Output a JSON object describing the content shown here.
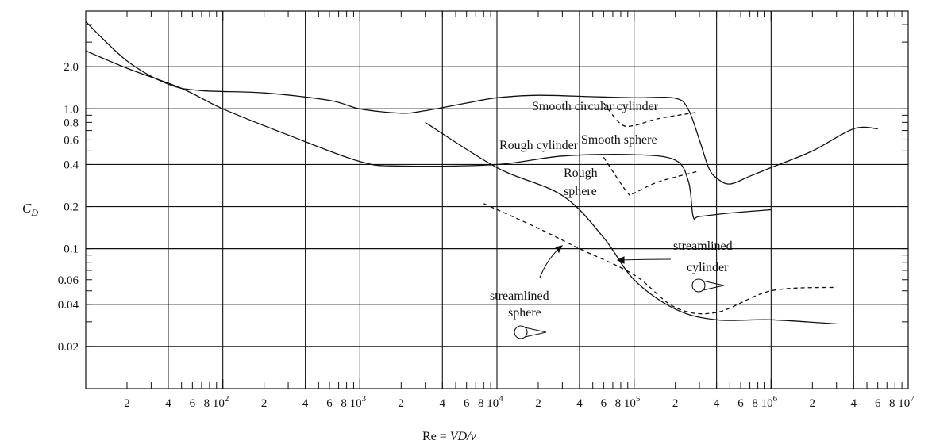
{
  "chart_data": {
    "type": "line",
    "x_scale": "log",
    "y_scale": "log",
    "xlim": [
      10,
      10000000
    ],
    "ylim": [
      0.01,
      5.0
    ],
    "grid": true,
    "xlabel": {
      "pre": "Re = ",
      "italic": "VD/ν"
    },
    "ylabel": {
      "main": "C",
      "sub": "D"
    },
    "x_major_ticks": [
      {
        "x": 100,
        "base": "8 10",
        "sup": "2"
      },
      {
        "x": 1000,
        "base": "8 10",
        "sup": "3"
      },
      {
        "x": 10000,
        "base": "8 10",
        "sup": "4"
      },
      {
        "x": 100000,
        "base": "8 10",
        "sup": "5"
      },
      {
        "x": 1000000,
        "base": "8 10",
        "sup": "6"
      },
      {
        "x": 10000000,
        "base": "8 10",
        "sup": "7"
      }
    ],
    "x_minor_labels": [
      {
        "x": 20,
        "label": "2"
      },
      {
        "x": 40,
        "label": "4"
      },
      {
        "x": 60,
        "label": "6"
      },
      {
        "x": 200,
        "label": "2"
      },
      {
        "x": 400,
        "label": "4"
      },
      {
        "x": 600,
        "label": "6"
      },
      {
        "x": 2000,
        "label": "2"
      },
      {
        "x": 4000,
        "label": "4"
      },
      {
        "x": 6000,
        "label": "6"
      },
      {
        "x": 20000,
        "label": "2"
      },
      {
        "x": 40000,
        "label": "4"
      },
      {
        "x": 60000,
        "label": "6"
      },
      {
        "x": 200000,
        "label": "2"
      },
      {
        "x": 400000,
        "label": "4"
      },
      {
        "x": 600000,
        "label": "6"
      },
      {
        "x": 2000000,
        "label": "2"
      },
      {
        "x": 4000000,
        "label": "4"
      },
      {
        "x": 6000000,
        "label": "6"
      }
    ],
    "y_tick_labels": [
      {
        "y": 2.0,
        "label": "2.0"
      },
      {
        "y": 1.0,
        "label": "1.0"
      },
      {
        "y": 0.8,
        "label": "0.8"
      },
      {
        "y": 0.6,
        "label": "0.6"
      },
      {
        "y": 0.4,
        "label": "0.4"
      },
      {
        "y": 0.2,
        "label": "0.2"
      },
      {
        "y": 0.1,
        "label": "0.1"
      },
      {
        "y": 0.06,
        "label": "0.06"
      },
      {
        "y": 0.04,
        "label": "0.04"
      },
      {
        "y": 0.02,
        "label": "0.02"
      }
    ],
    "y_gridlines": [
      2.0,
      1.0,
      0.4,
      0.2,
      0.1,
      0.04,
      0.02
    ],
    "x_vertical_gridlines": [
      40,
      100,
      400,
      1000,
      4000,
      10000,
      40000,
      100000,
      400000,
      1000000,
      4000000
    ],
    "series": [
      {
        "name": "Smooth circular cylinder",
        "dash": false,
        "x": [
          10,
          20,
          40,
          70,
          200,
          600,
          1000,
          2000,
          3000,
          6000,
          10000,
          20000,
          50000,
          100000,
          200000,
          250000,
          300000,
          350000,
          400000,
          500000,
          700000,
          1000000,
          2000000,
          4000000,
          6000000
        ],
        "y": [
          4.2,
          2.2,
          1.5,
          1.35,
          1.3,
          1.15,
          1.0,
          0.93,
          0.97,
          1.1,
          1.2,
          1.25,
          1.22,
          1.2,
          1.19,
          0.98,
          0.6,
          0.38,
          0.32,
          0.29,
          0.33,
          0.38,
          0.5,
          0.72,
          0.72
        ]
      },
      {
        "name": "Rough cylinder",
        "dash": true,
        "x": [
          60000,
          80000,
          100000,
          150000,
          300000
        ],
        "y": [
          1.1,
          0.78,
          0.76,
          0.85,
          0.95
        ]
      },
      {
        "name": "Smooth sphere",
        "dash": false,
        "x": [
          10,
          20,
          50,
          100,
          300,
          1000,
          2000,
          10000,
          30000,
          100000,
          200000,
          250000,
          270000,
          300000,
          500000,
          1000000
        ],
        "y": [
          2.6,
          1.95,
          1.4,
          1.0,
          0.65,
          0.42,
          0.39,
          0.4,
          0.46,
          0.47,
          0.43,
          0.3,
          0.17,
          0.17,
          0.18,
          0.19
        ]
      },
      {
        "name": "Rough sphere",
        "dash": true,
        "x": [
          60000,
          90000,
          100000,
          150000,
          300000
        ],
        "y": [
          0.45,
          0.25,
          0.25,
          0.3,
          0.36
        ]
      },
      {
        "name": "streamlined cylinder",
        "dash": false,
        "x": [
          3000,
          10000,
          30000,
          60000,
          100000,
          200000,
          400000,
          1000000,
          3000000
        ],
        "y": [
          0.8,
          0.38,
          0.24,
          0.12,
          0.06,
          0.037,
          0.031,
          0.031,
          0.029
        ]
      },
      {
        "name": "streamlined sphere",
        "dash": true,
        "x": [
          8000,
          20000,
          40000,
          100000,
          200000,
          400000,
          1000000,
          3000000
        ],
        "y": [
          0.21,
          0.14,
          0.1,
          0.065,
          0.038,
          0.035,
          0.05,
          0.053
        ]
      }
    ],
    "annotations": {
      "smooth_cyl": "Smooth circular cylinder",
      "rough_cyl": "Rough cylinder",
      "smooth_sphere": "Smooth sphere",
      "rough_sphere_1": "Rough",
      "rough_sphere_2": "sphere",
      "streamlined_cyl_1": "streamlined",
      "streamlined_cyl_2": "cylinder",
      "streamlined_sphere_1": "streamlined",
      "streamlined_sphere_2": "sphere"
    }
  }
}
